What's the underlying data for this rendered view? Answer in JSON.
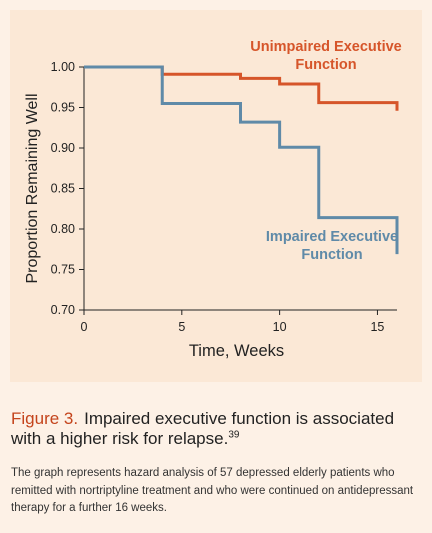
{
  "colors": {
    "panel_bg": "#fbe8d6",
    "page_bg": "#fdf1e6",
    "unimpaired": "#d6552a",
    "impaired": "#5f8aa8",
    "caption_label": "#c4441c"
  },
  "chart_data": {
    "type": "line",
    "step": true,
    "xlabel": "Time, Weeks",
    "ylabel": "Proportion Remaining Well",
    "xlim": [
      0,
      16
    ],
    "ylim": [
      0.7,
      1.0
    ],
    "xticks": [
      0,
      5,
      10,
      15
    ],
    "xtick_labels": [
      "0",
      "5",
      "10",
      "15"
    ],
    "yticks": [
      1.0,
      0.95,
      0.9,
      0.85,
      0.8,
      0.75,
      0.7
    ],
    "ytick_labels": [
      "1.00",
      "0.95",
      "0.90",
      "0.85",
      "0.80",
      "0.75",
      "0.70"
    ],
    "grid": false,
    "series": [
      {
        "name": "Unimpaired Executive Function",
        "label_lines": [
          "Unimpaired Executive",
          "Function"
        ],
        "color": "#d6552a",
        "x": [
          0,
          4,
          8,
          10,
          12,
          16,
          16
        ],
        "y": [
          1.0,
          0.991,
          0.986,
          0.979,
          0.956,
          0.955,
          0.946
        ]
      },
      {
        "name": "Impaired Executive Function",
        "label_lines": [
          "Impaired Executive",
          "Function"
        ],
        "color": "#5f8aa8",
        "x": [
          0,
          4,
          8,
          10,
          12,
          16,
          16
        ],
        "y": [
          1.0,
          0.955,
          0.932,
          0.901,
          0.814,
          0.814,
          0.769
        ]
      }
    ]
  },
  "caption": {
    "label": "Figure 3.",
    "text": "Impaired executive function is associated with a higher risk for relapse.",
    "ref": "39"
  },
  "note": "The graph represents hazard analysis of 57 depressed elderly patients who remitted with nortriptyline treatment and who were continued on antidepressant therapy for a further 16 weeks."
}
